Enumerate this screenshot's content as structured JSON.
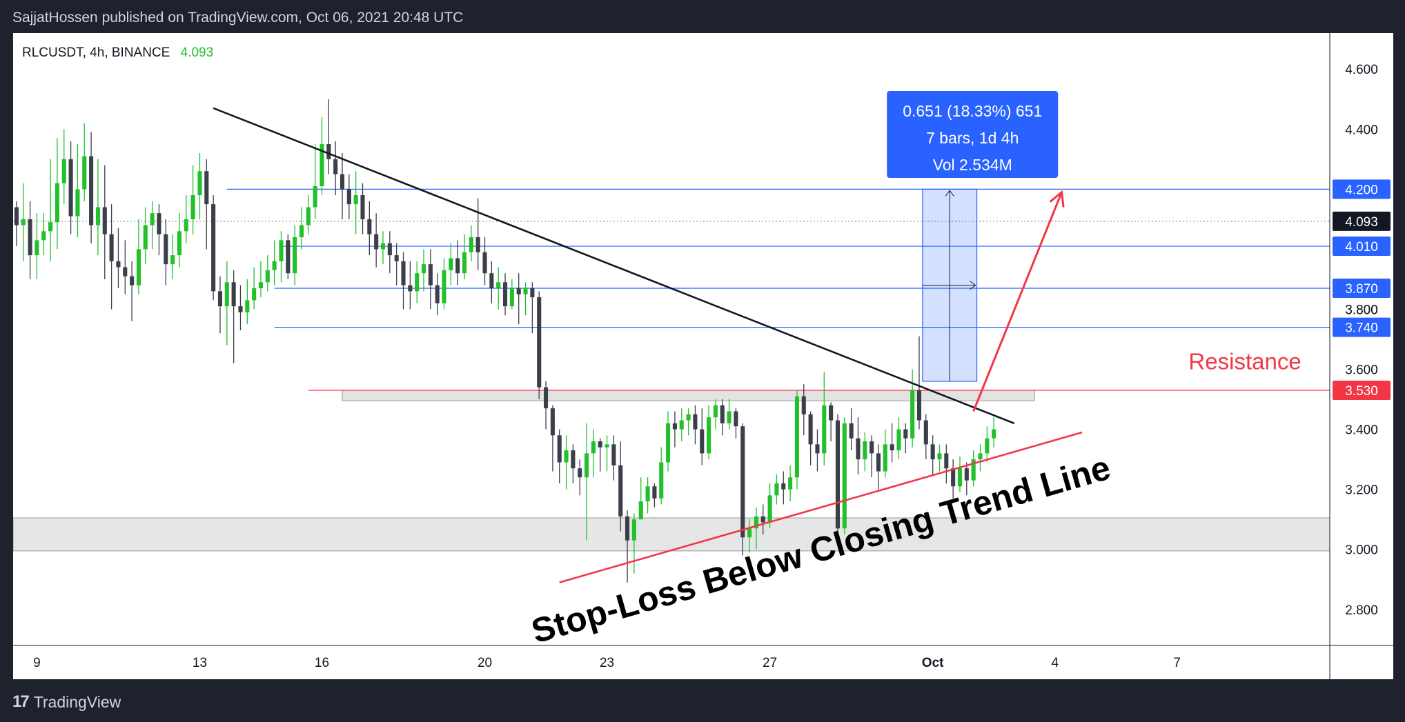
{
  "header": {
    "publisher_line": "SajjatHossen published on TradingView.com, Oct 06, 2021 20:48 UTC"
  },
  "footer": {
    "brand": "TradingView",
    "logo_icon": "tradingview-logo-icon"
  },
  "colors": {
    "up": "#22c02b",
    "down": "#3b3f49",
    "hline": "#2962ff",
    "resistance": "#f23645",
    "tag_blue": "#2962ff",
    "tag_red": "#f23645",
    "tag_dark": "#131722",
    "measure": "#2962ff"
  },
  "chart_data": {
    "type": "candlestick",
    "symbol": "RLCUSDT, 4h, BINANCE",
    "last_price": "4.093",
    "ylim": [
      2.68,
      4.72
    ],
    "y_ticks": [
      "4.600",
      "4.400",
      "4.200",
      "4.000",
      "3.800",
      "3.600",
      "3.400",
      "3.200",
      "3.000",
      "2.800"
    ],
    "x_ticks": [
      {
        "label": "9",
        "bar": 3
      },
      {
        "label": "13",
        "bar": 27
      },
      {
        "label": "16",
        "bar": 45
      },
      {
        "label": "20",
        "bar": 69
      },
      {
        "label": "23",
        "bar": 87
      },
      {
        "label": "27",
        "bar": 111
      },
      {
        "label": "Oct",
        "bar": 135
      },
      {
        "label": "4",
        "bar": 153
      },
      {
        "label": "7",
        "bar": 171
      }
    ],
    "bars_total": 194,
    "horizontal_levels": [
      {
        "label": "4.200",
        "value": 4.2,
        "from_bar": 31,
        "color": "blue"
      },
      {
        "label": "4.010",
        "value": 4.01,
        "from_bar": 39,
        "color": "blue"
      },
      {
        "label": "3.870",
        "value": 3.87,
        "from_bar": 38,
        "color": "blue"
      },
      {
        "label": "3.800",
        "value": 3.8,
        "from_bar": null,
        "color": "none"
      },
      {
        "label": "3.740",
        "value": 3.74,
        "from_bar": 38,
        "color": "blue"
      },
      {
        "label": "3.530",
        "value": 3.53,
        "from_bar": 43,
        "color": "red"
      }
    ],
    "last_price_tag": {
      "label": "4.093",
      "value": 4.093
    },
    "support_zone": {
      "top": 3.105,
      "bottom": 2.995
    },
    "resistance_box": {
      "top": 3.53,
      "bottom": 3.495,
      "from_bar": 48,
      "to_bar": 150
    },
    "measure_box": {
      "from_bar": 134,
      "to_bar": 141,
      "top": 4.2,
      "bottom": 3.56,
      "text": [
        "0.651 (18.33%) 651",
        "7 bars, 1d 4h",
        "Vol 2.534M"
      ]
    },
    "trendlines": [
      {
        "name": "descending",
        "from": [
          29,
          4.47
        ],
        "to": [
          147,
          3.42
        ],
        "color": "#131722"
      },
      {
        "name": "ascending",
        "from": [
          80,
          2.89
        ],
        "to": [
          157,
          3.39
        ],
        "color": "#f23645"
      }
    ],
    "arrow": {
      "from": [
        141,
        3.46
      ],
      "to": [
        154,
        4.19
      ]
    },
    "annotations": [
      {
        "text": "Resistance",
        "value": 3.6,
        "bar": 181
      },
      {
        "text": "Stop-Loss Below Closing Trend Line",
        "bar": 119,
        "value": 3.05
      }
    ],
    "candles": [
      [
        4.14,
        4.08,
        4.16,
        4.01
      ],
      [
        4.08,
        4.1,
        4.22,
        3.96
      ],
      [
        4.1,
        3.98,
        4.16,
        3.9
      ],
      [
        3.98,
        4.03,
        4.12,
        3.9
      ],
      [
        4.03,
        4.06,
        4.12,
        3.98
      ],
      [
        4.06,
        4.09,
        4.3,
        3.96
      ],
      [
        4.09,
        4.22,
        4.37,
        4.0
      ],
      [
        4.22,
        4.3,
        4.4,
        4.15
      ],
      [
        4.3,
        4.11,
        4.36,
        4.05
      ],
      [
        4.11,
        4.2,
        4.35,
        4.04
      ],
      [
        4.2,
        4.31,
        4.42,
        4.16
      ],
      [
        4.31,
        4.08,
        4.39,
        4.02
      ],
      [
        4.08,
        4.14,
        4.3,
        3.98
      ],
      [
        4.14,
        4.05,
        4.28,
        3.9
      ],
      [
        4.05,
        3.96,
        4.15,
        3.8
      ],
      [
        3.96,
        3.94,
        4.07,
        3.87
      ],
      [
        3.94,
        3.91,
        4.03,
        3.85
      ],
      [
        3.91,
        3.88,
        3.96,
        3.76
      ],
      [
        3.88,
        4.0,
        4.1,
        3.85
      ],
      [
        4.0,
        4.08,
        4.14,
        3.95
      ],
      [
        4.08,
        4.12,
        4.16,
        4.0
      ],
      [
        4.12,
        4.05,
        4.15,
        3.98
      ],
      [
        4.05,
        3.95,
        4.1,
        3.88
      ],
      [
        3.95,
        3.98,
        4.05,
        3.9
      ],
      [
        3.98,
        4.06,
        4.12,
        3.94
      ],
      [
        4.06,
        4.1,
        4.18,
        4.02
      ],
      [
        4.1,
        4.18,
        4.28,
        4.05
      ],
      [
        4.18,
        4.26,
        4.32,
        4.1
      ],
      [
        4.26,
        4.15,
        4.3,
        4.0
      ],
      [
        4.15,
        3.86,
        4.18,
        3.83
      ],
      [
        3.86,
        3.81,
        3.91,
        3.72
      ],
      [
        3.81,
        3.89,
        3.96,
        3.68
      ],
      [
        3.89,
        3.81,
        3.93,
        3.62
      ],
      [
        3.81,
        3.79,
        3.88,
        3.73
      ],
      [
        3.79,
        3.83,
        3.9,
        3.75
      ],
      [
        3.83,
        3.87,
        3.94,
        3.8
      ],
      [
        3.87,
        3.89,
        3.96,
        3.84
      ],
      [
        3.89,
        3.93,
        3.98,
        3.86
      ],
      [
        3.93,
        3.96,
        4.03,
        3.88
      ],
      [
        3.96,
        4.03,
        4.06,
        3.89
      ],
      [
        4.03,
        3.92,
        4.05,
        3.9
      ],
      [
        3.92,
        4.04,
        4.08,
        3.88
      ],
      [
        4.04,
        4.08,
        4.14,
        4.0
      ],
      [
        4.08,
        4.14,
        4.18,
        4.05
      ],
      [
        4.14,
        4.21,
        4.35,
        4.1
      ],
      [
        4.21,
        4.35,
        4.44,
        4.18
      ],
      [
        4.35,
        4.3,
        4.5,
        4.25
      ],
      [
        4.3,
        4.25,
        4.36,
        4.18
      ],
      [
        4.25,
        4.2,
        4.32,
        4.1
      ],
      [
        4.2,
        4.15,
        4.25,
        4.1
      ],
      [
        4.15,
        4.18,
        4.26,
        4.05
      ],
      [
        4.18,
        4.1,
        4.22,
        4.05
      ],
      [
        4.1,
        4.05,
        4.16,
        3.98
      ],
      [
        4.05,
        4.0,
        4.12,
        3.94
      ],
      [
        4.0,
        4.02,
        4.06,
        3.95
      ],
      [
        4.02,
        3.98,
        4.06,
        3.92
      ],
      [
        3.98,
        3.96,
        4.02,
        3.88
      ],
      [
        3.96,
        3.88,
        3.99,
        3.8
      ],
      [
        3.88,
        3.86,
        3.96,
        3.8
      ],
      [
        3.86,
        3.92,
        3.96,
        3.82
      ],
      [
        3.92,
        3.95,
        4.0,
        3.86
      ],
      [
        3.95,
        3.88,
        4.0,
        3.8
      ],
      [
        3.88,
        3.82,
        3.92,
        3.78
      ],
      [
        3.82,
        3.93,
        3.97,
        3.8
      ],
      [
        3.93,
        3.97,
        4.02,
        3.88
      ],
      [
        3.97,
        3.92,
        4.03,
        3.88
      ],
      [
        3.92,
        3.99,
        4.05,
        3.9
      ],
      [
        3.99,
        4.04,
        4.08,
        3.96
      ],
      [
        4.04,
        3.99,
        4.17,
        3.93
      ],
      [
        3.99,
        3.92,
        4.04,
        3.88
      ],
      [
        3.92,
        3.87,
        3.96,
        3.82
      ],
      [
        3.87,
        3.89,
        3.94,
        3.8
      ],
      [
        3.89,
        3.81,
        3.92,
        3.78
      ],
      [
        3.81,
        3.87,
        3.9,
        3.8
      ],
      [
        3.87,
        3.85,
        3.92,
        3.75
      ],
      [
        3.85,
        3.87,
        3.89,
        3.78
      ],
      [
        3.87,
        3.84,
        3.89,
        3.72
      ],
      [
        3.84,
        3.54,
        3.86,
        3.5
      ],
      [
        3.54,
        3.47,
        3.56,
        3.4
      ],
      [
        3.47,
        3.38,
        3.48,
        3.26
      ],
      [
        3.38,
        3.29,
        3.4,
        3.22
      ],
      [
        3.29,
        3.33,
        3.38,
        3.2
      ],
      [
        3.33,
        3.27,
        3.35,
        3.22
      ],
      [
        3.27,
        3.24,
        3.3,
        3.18
      ],
      [
        3.24,
        3.32,
        3.42,
        3.03
      ],
      [
        3.32,
        3.36,
        3.4,
        3.24
      ],
      [
        3.36,
        3.34,
        3.37,
        3.26
      ],
      [
        3.34,
        3.35,
        3.38,
        3.26
      ],
      [
        3.35,
        3.28,
        3.38,
        3.23
      ],
      [
        3.28,
        3.11,
        3.36,
        3.06
      ],
      [
        3.11,
        3.03,
        3.13,
        2.89
      ],
      [
        3.03,
        3.1,
        3.12,
        2.92
      ],
      [
        3.1,
        3.16,
        3.24,
        3.1
      ],
      [
        3.16,
        3.21,
        3.24,
        3.12
      ],
      [
        3.21,
        3.17,
        3.22,
        3.14
      ],
      [
        3.17,
        3.29,
        3.34,
        3.15
      ],
      [
        3.29,
        3.42,
        3.46,
        3.26
      ],
      [
        3.42,
        3.4,
        3.46,
        3.34
      ],
      [
        3.4,
        3.43,
        3.47,
        3.36
      ],
      [
        3.43,
        3.45,
        3.47,
        3.38
      ],
      [
        3.45,
        3.4,
        3.48,
        3.35
      ],
      [
        3.4,
        3.32,
        3.47,
        3.28
      ],
      [
        3.32,
        3.44,
        3.48,
        3.3
      ],
      [
        3.44,
        3.48,
        3.5,
        3.4
      ],
      [
        3.48,
        3.42,
        3.5,
        3.38
      ],
      [
        3.42,
        3.46,
        3.5,
        3.4
      ],
      [
        3.46,
        3.41,
        3.47,
        3.37
      ],
      [
        3.41,
        3.04,
        3.42,
        2.98
      ],
      [
        3.04,
        3.07,
        3.1,
        2.99
      ],
      [
        3.07,
        3.11,
        3.14,
        3.0
      ],
      [
        3.11,
        3.09,
        3.15,
        3.05
      ],
      [
        3.09,
        3.18,
        3.22,
        3.07
      ],
      [
        3.18,
        3.22,
        3.25,
        3.15
      ],
      [
        3.22,
        3.2,
        3.26,
        3.15
      ],
      [
        3.2,
        3.24,
        3.28,
        3.16
      ],
      [
        3.24,
        3.51,
        3.53,
        3.2
      ],
      [
        3.51,
        3.45,
        3.55,
        3.38
      ],
      [
        3.45,
        3.35,
        3.46,
        3.28
      ],
      [
        3.35,
        3.32,
        3.4,
        3.26
      ],
      [
        3.32,
        3.48,
        3.59,
        3.28
      ],
      [
        3.48,
        3.43,
        3.49,
        3.36
      ],
      [
        3.43,
        3.07,
        3.45,
        3.02
      ],
      [
        3.07,
        3.42,
        3.44,
        3.05
      ],
      [
        3.42,
        3.37,
        3.47,
        3.33
      ],
      [
        3.37,
        3.3,
        3.44,
        3.25
      ],
      [
        3.3,
        3.36,
        3.39,
        3.26
      ],
      [
        3.36,
        3.32,
        3.38,
        3.24
      ],
      [
        3.32,
        3.26,
        3.35,
        3.2
      ],
      [
        3.26,
        3.35,
        3.4,
        3.24
      ],
      [
        3.35,
        3.33,
        3.42,
        3.29
      ],
      [
        3.33,
        3.4,
        3.44,
        3.3
      ],
      [
        3.4,
        3.37,
        3.42,
        3.32
      ],
      [
        3.37,
        3.53,
        3.6,
        3.34
      ],
      [
        3.53,
        3.43,
        3.71,
        3.4
      ],
      [
        3.43,
        3.35,
        3.45,
        3.3
      ],
      [
        3.35,
        3.3,
        3.38,
        3.25
      ],
      [
        3.3,
        3.32,
        3.35,
        3.26
      ],
      [
        3.32,
        3.27,
        3.35,
        3.22
      ],
      [
        3.27,
        3.21,
        3.3,
        3.17
      ],
      [
        3.21,
        3.27,
        3.31,
        3.19
      ],
      [
        3.27,
        3.23,
        3.29,
        3.18
      ],
      [
        3.23,
        3.3,
        3.33,
        3.21
      ],
      [
        3.3,
        3.32,
        3.35,
        3.26
      ],
      [
        3.32,
        3.37,
        3.41,
        3.29
      ],
      [
        3.37,
        3.4,
        3.44,
        3.34
      ]
    ]
  }
}
